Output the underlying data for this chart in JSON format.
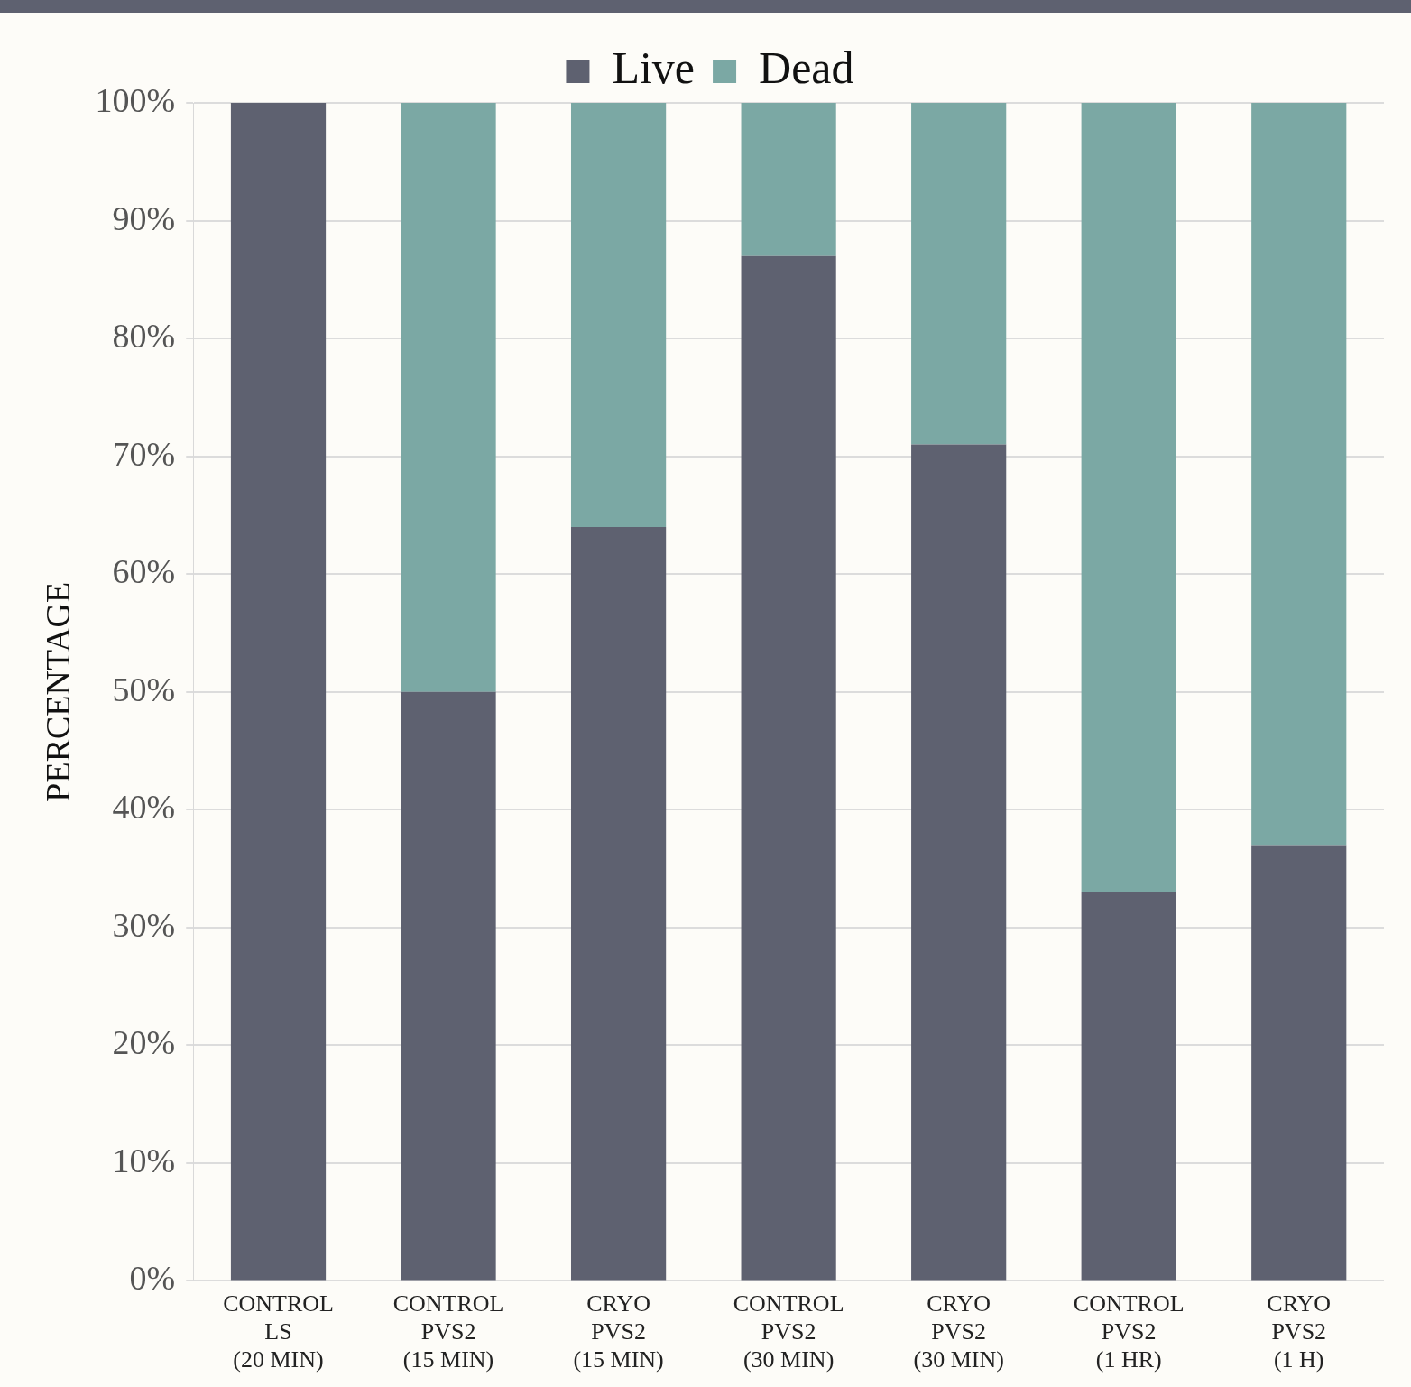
{
  "chart_data": {
    "type": "bar",
    "stacked": true,
    "ylabel": "PERCENTAGE",
    "categories": [
      "CONTROL LS (20 MIN)",
      "CONTROL PVS2 (15 MIN)",
      "CRYO PVS2 (15 MIN)",
      "CONTROL PVS2 (30 MIN)",
      "CRYO PVS2 (30 MIN)",
      "CONTROL PVS2 (1 HR)",
      "CRYO PVS2 (1 H)"
    ],
    "series": [
      {
        "name": "Live",
        "color": "#5e6170",
        "values": [
          100,
          50,
          64,
          87,
          71,
          33,
          37
        ]
      },
      {
        "name": "Dead",
        "color": "#7ba8a4",
        "values": [
          0,
          50,
          36,
          13,
          29,
          67,
          63
        ]
      }
    ],
    "ylim": [
      0,
      100
    ],
    "yticks": [
      {
        "value": 0,
        "label": "0%"
      },
      {
        "value": 10,
        "label": "10%"
      },
      {
        "value": 20,
        "label": "20%"
      },
      {
        "value": 30,
        "label": "30%"
      },
      {
        "value": 40,
        "label": "40%"
      },
      {
        "value": 50,
        "label": "50%"
      },
      {
        "value": 60,
        "label": "60%"
      },
      {
        "value": 70,
        "label": "70%"
      },
      {
        "value": 80,
        "label": "80%"
      },
      {
        "value": 90,
        "label": "90%"
      },
      {
        "value": 100,
        "label": "100%"
      }
    ],
    "grid": "y",
    "legend": "top"
  }
}
